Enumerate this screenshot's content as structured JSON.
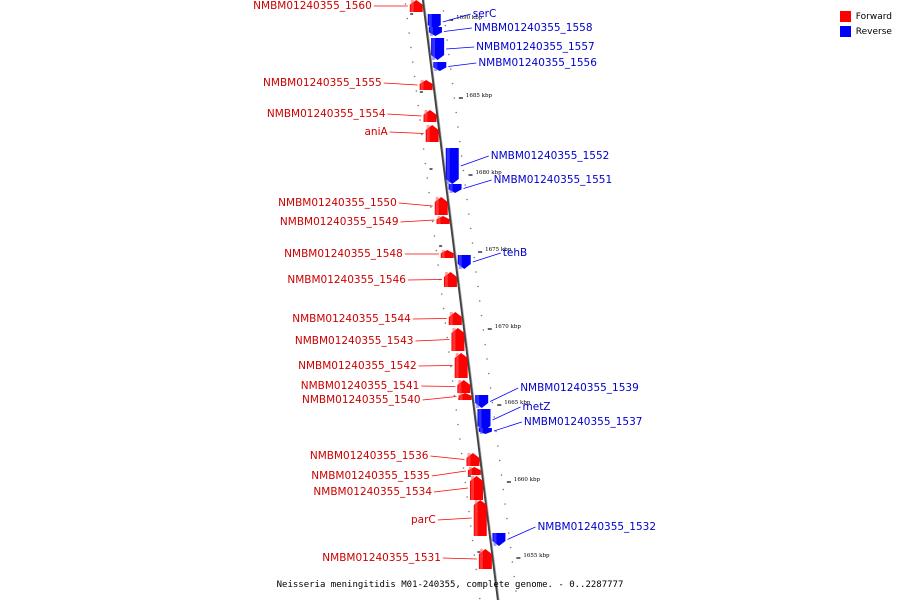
{
  "legend": {
    "forward": {
      "label": "Forward",
      "color": "#ff0000"
    },
    "reverse": {
      "label": "Reverse",
      "color": "#0000ff"
    }
  },
  "caption": "Neisseria meningitidis M01-240355, complete genome. - 0..2287777",
  "backbone_ticks": [
    {
      "label": "1690 kbp"
    },
    {
      "label": "1685 kbp"
    },
    {
      "label": "1680 kbp"
    },
    {
      "label": "1675 kbp"
    },
    {
      "label": "1670 kbp"
    },
    {
      "label": "1665 kbp"
    },
    {
      "label": "1660 kbp"
    },
    {
      "label": "1655 kbp"
    }
  ],
  "genes": [
    {
      "name": "NMBM01240355_1560",
      "strand": "forward"
    },
    {
      "name": "serC",
      "strand": "reverse"
    },
    {
      "name": "NMBM01240355_1558",
      "strand": "reverse"
    },
    {
      "name": "NMBM01240355_1557",
      "strand": "reverse"
    },
    {
      "name": "NMBM01240355_1556",
      "strand": "reverse"
    },
    {
      "name": "NMBM01240355_1555",
      "strand": "forward"
    },
    {
      "name": "NMBM01240355_1554",
      "strand": "forward"
    },
    {
      "name": "aniA",
      "strand": "forward"
    },
    {
      "name": "NMBM01240355_1552",
      "strand": "reverse"
    },
    {
      "name": "NMBM01240355_1551",
      "strand": "reverse"
    },
    {
      "name": "NMBM01240355_1550",
      "strand": "forward"
    },
    {
      "name": "NMBM01240355_1549",
      "strand": "forward"
    },
    {
      "name": "NMBM01240355_1548",
      "strand": "forward"
    },
    {
      "name": "tehB",
      "strand": "reverse"
    },
    {
      "name": "NMBM01240355_1546",
      "strand": "forward"
    },
    {
      "name": "NMBM01240355_1544",
      "strand": "forward"
    },
    {
      "name": "NMBM01240355_1543",
      "strand": "forward"
    },
    {
      "name": "NMBM01240355_1542",
      "strand": "forward"
    },
    {
      "name": "NMBM01240355_1541",
      "strand": "forward"
    },
    {
      "name": "NMBM01240355_1540",
      "strand": "forward"
    },
    {
      "name": "NMBM01240355_1539",
      "strand": "reverse"
    },
    {
      "name": "metZ",
      "strand": "reverse"
    },
    {
      "name": "NMBM01240355_1537",
      "strand": "reverse"
    },
    {
      "name": "NMBM01240355_1536",
      "strand": "forward"
    },
    {
      "name": "NMBM01240355_1535",
      "strand": "forward"
    },
    {
      "name": "NMBM01240355_1534",
      "strand": "forward"
    },
    {
      "name": "parC",
      "strand": "forward"
    },
    {
      "name": "NMBM01240355_1532",
      "strand": "reverse"
    },
    {
      "name": "NMBM01240355_1531",
      "strand": "forward"
    }
  ]
}
